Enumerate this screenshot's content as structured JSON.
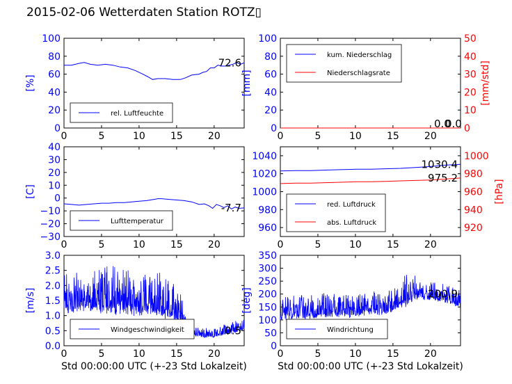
{
  "title": "2015-02-06 Wetterdaten Station ROTZ▯",
  "colors": {
    "blue": "#0000ff",
    "red": "#ff0000",
    "black": "#000000",
    "light_blue": "#8080ff"
  },
  "chart_data": [
    {
      "type": "line",
      "panel": "humidity",
      "ylabel": "[%]",
      "xlim": [
        0,
        24
      ],
      "ylim": [
        0,
        100
      ],
      "xticks": [
        "0",
        "5",
        "10",
        "15",
        "20"
      ],
      "yticks": [
        "0",
        "20",
        "40",
        "60",
        "80",
        "100"
      ],
      "legend_position": "lower-left",
      "last_value_label": "72.6",
      "series": [
        {
          "name": "rel. Luftfeuchte",
          "color": "#0000ff",
          "x": [
            0,
            1,
            2,
            2.7,
            3.5,
            4.5,
            5.5,
            6.5,
            7.5,
            8.5,
            9.5,
            10.5,
            11.2,
            11.8,
            12.5,
            13.5,
            14.5,
            15.5,
            16.2,
            17,
            18,
            18.5,
            19,
            19.5,
            20,
            20.5,
            21,
            21.5,
            22,
            22.5,
            23,
            23.5,
            24
          ],
          "y": [
            70,
            70,
            72,
            73,
            71,
            70,
            71,
            70,
            68,
            67,
            64,
            60,
            57,
            54,
            55,
            55,
            54,
            54,
            56,
            59,
            60,
            62,
            63,
            67,
            67,
            70,
            69,
            69,
            70,
            71,
            73,
            71,
            72.6
          ]
        }
      ]
    },
    {
      "type": "line",
      "panel": "precipitation",
      "ylabel": "[mm]",
      "ylabel_right": "[mm/std]",
      "xlim": [
        0,
        24
      ],
      "ylim": [
        0,
        100
      ],
      "ylim_right": [
        0,
        50
      ],
      "xticks": [
        "0",
        "5",
        "10",
        "15",
        "20"
      ],
      "yticks": [
        "0",
        "20",
        "40",
        "60",
        "80",
        "100"
      ],
      "yticks_right": [
        "0",
        "10",
        "20",
        "30",
        "40",
        "50"
      ],
      "legend_position": "upper-left",
      "last_value_labels": [
        "0.0",
        "0.0"
      ],
      "series": [
        {
          "name": "kum. Niederschlag",
          "color": "#0000ff",
          "axis": "left",
          "x": [
            0,
            24
          ],
          "y": [
            0,
            0
          ]
        },
        {
          "name": "Niederschlagsrate",
          "color": "#ff0000",
          "axis": "right",
          "x": [
            0,
            24
          ],
          "y": [
            0,
            0
          ]
        }
      ]
    },
    {
      "type": "line",
      "panel": "temperature",
      "ylabel": "[C]",
      "xlim": [
        0,
        24
      ],
      "ylim": [
        -30,
        40
      ],
      "xticks": [
        "0",
        "5",
        "10",
        "15",
        "20"
      ],
      "yticks": [
        "−30",
        "−20",
        "−10",
        "0",
        "10",
        "20",
        "30",
        "40"
      ],
      "legend_position": "lower-left",
      "last_value_label": "-7.7",
      "series": [
        {
          "name": "Lufttemperatur",
          "color": "#0000ff",
          "x": [
            0,
            1,
            2,
            3,
            4,
            5,
            6,
            7,
            8,
            9,
            10,
            11,
            12,
            12.5,
            13,
            14,
            15,
            16,
            17,
            18,
            18.7,
            19.3,
            19.8,
            20.3,
            20.8,
            21.3,
            21.8,
            22.3,
            22.8,
            23.3,
            24
          ],
          "y": [
            -4.5,
            -5,
            -5.5,
            -5,
            -4.5,
            -4,
            -4,
            -3.5,
            -3.5,
            -3,
            -2.5,
            -2,
            -1,
            -0.5,
            -0.5,
            -1,
            -1.5,
            -2,
            -3,
            -5,
            -4.5,
            -6,
            -8,
            -5,
            -6,
            -7.5,
            -6,
            -8.5,
            -7,
            -8,
            -7.7
          ]
        }
      ]
    },
    {
      "type": "line",
      "panel": "pressure",
      "ylabel_right": "[hPa]",
      "xlim": [
        0,
        24
      ],
      "ylim": [
        950,
        1050
      ],
      "ylim_right": [
        910,
        1010
      ],
      "xticks": [
        "0",
        "5",
        "10",
        "15",
        "20"
      ],
      "yticks": [
        "960",
        "980",
        "1000",
        "1020",
        "1040"
      ],
      "yticks_right": [
        "920",
        "940",
        "960",
        "980",
        "1000"
      ],
      "legend_position": "lower-left",
      "last_value_labels": [
        "1030.4",
        "975.2"
      ],
      "series": [
        {
          "name": "red. Luftdruck",
          "color": "#0000ff",
          "axis": "left",
          "x": [
            0,
            2,
            4,
            6,
            8,
            10,
            12,
            14,
            16,
            18,
            20,
            22,
            24
          ],
          "y": [
            1023,
            1023.5,
            1023.5,
            1024,
            1024.5,
            1025,
            1025,
            1025.5,
            1026,
            1027,
            1028,
            1029.5,
            1030.4
          ]
        },
        {
          "name": "abs. Luftdruck",
          "color": "#ff0000",
          "axis": "right",
          "x": [
            0,
            2,
            4,
            6,
            8,
            10,
            12,
            14,
            16,
            18,
            20,
            22,
            24
          ],
          "y": [
            969,
            969.5,
            969.5,
            970,
            970.5,
            971,
            971,
            971.5,
            972,
            972.5,
            973,
            974,
            975.2
          ]
        }
      ]
    },
    {
      "type": "line",
      "panel": "wind-speed",
      "ylabel": "[m/s]",
      "xlabel": "Std 00:00:00 UTC (+-23 Std Lokalzeit)",
      "xlim": [
        0,
        24
      ],
      "ylim": [
        0,
        3
      ],
      "xticks": [
        "0",
        "5",
        "10",
        "15",
        "20"
      ],
      "yticks": [
        "0.0",
        "0.5",
        "1.0",
        "1.5",
        "2.0",
        "2.5",
        "3.0"
      ],
      "legend_position": "lower-center",
      "last_value_label": "0.5",
      "series": [
        {
          "name": "Windgeschwindigkeit",
          "color": "#0000ff",
          "envelope_x": [
            0,
            2,
            4,
            6,
            8,
            10,
            12,
            14,
            15.5,
            16.5,
            18,
            20,
            22,
            24
          ],
          "envelope_low": [
            0.8,
            0.8,
            0.8,
            0.7,
            0.7,
            0.7,
            0.7,
            0.6,
            0.5,
            0.3,
            0.2,
            0.2,
            0.3,
            0.4
          ],
          "envelope_high": [
            2.5,
            2.5,
            2.5,
            2.8,
            2.7,
            2.4,
            2.6,
            2.3,
            1.8,
            1.0,
            0.6,
            0.6,
            0.8,
            0.9
          ]
        }
      ]
    },
    {
      "type": "line",
      "panel": "wind-direction",
      "ylabel": "[deg]",
      "xlabel": "Std 00:00:00 UTC (+-23 Std Lokalzeit)",
      "xlim": [
        0,
        24
      ],
      "ylim": [
        0,
        350
      ],
      "xticks": [
        "0",
        "5",
        "10",
        "15",
        "20"
      ],
      "yticks": [
        "0",
        "50",
        "100",
        "150",
        "200",
        "250",
        "300",
        "350"
      ],
      "legend_position": "lower-center",
      "last_value_label": "200.9",
      "series": [
        {
          "name": "Windrichtung",
          "color": "#0000ff",
          "envelope_x": [
            0,
            2,
            4,
            6,
            8,
            10,
            12,
            14,
            15.5,
            16.5,
            18,
            20,
            22,
            24
          ],
          "envelope_low": [
            80,
            80,
            80,
            90,
            90,
            90,
            100,
            100,
            110,
            120,
            160,
            160,
            150,
            130
          ],
          "envelope_high": [
            190,
            210,
            200,
            210,
            200,
            200,
            220,
            210,
            250,
            280,
            280,
            260,
            240,
            230
          ]
        }
      ]
    }
  ]
}
